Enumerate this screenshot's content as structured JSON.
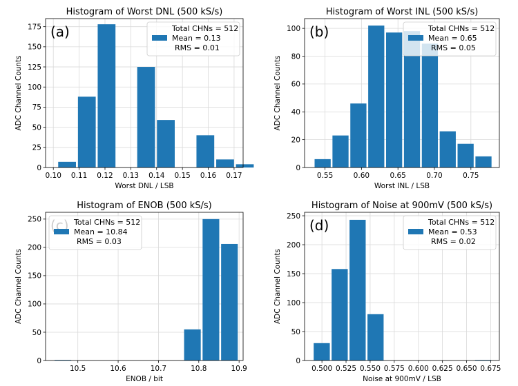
{
  "chart_data": [
    {
      "type": "bar",
      "title": "Histogram of Worst DNL (500 kS/s)",
      "panel_label": "(a)",
      "xlabel": "Worst DNL / LSB",
      "ylabel": "ADC Channel Counts",
      "xlim": [
        0.097,
        0.1735
      ],
      "ylim": [
        0,
        185
      ],
      "xticks": [
        0.1,
        0.11,
        0.12,
        0.13,
        0.14,
        0.15,
        0.16,
        0.17
      ],
      "xtick_labels": [
        "0.10",
        "0.11",
        "0.12",
        "0.13",
        "0.14",
        "0.15",
        "0.16",
        "0.17"
      ],
      "yticks": [
        0,
        25,
        50,
        75,
        100,
        125,
        150,
        175
      ],
      "ytick_labels": [
        "0",
        "25",
        "50",
        "75",
        "100",
        "125",
        "150",
        "175"
      ],
      "bin_start": 0.1015,
      "bin_width": 0.00765,
      "bar_fraction": 0.9,
      "values": [
        7,
        88,
        178,
        0,
        125,
        59,
        0,
        40,
        10,
        4
      ],
      "color": "#1f77b4",
      "legend": {
        "position": "top-right",
        "series_name": "Total CHNs = 512",
        "lines": [
          "Mean = 0.13",
          "RMS = 0.01"
        ]
      }
    },
    {
      "type": "bar",
      "title": "Histogram of Worst INL (500 kS/s)",
      "panel_label": "(b)",
      "xlabel": "Worst INL / LSB",
      "ylabel": "ADC Channel Counts",
      "xlim": [
        0.522,
        0.789
      ],
      "ylim": [
        0,
        107
      ],
      "xticks": [
        0.55,
        0.6,
        0.65,
        0.7,
        0.75
      ],
      "xtick_labels": [
        "0.55",
        "0.60",
        "0.65",
        "0.70",
        "0.75"
      ],
      "yticks": [
        0,
        20,
        40,
        60,
        80,
        100
      ],
      "ytick_labels": [
        "0",
        "20",
        "40",
        "60",
        "80",
        "100"
      ],
      "bin_start": 0.5345,
      "bin_width": 0.0245,
      "bar_fraction": 0.9,
      "values": [
        6,
        23,
        46,
        102,
        97,
        98,
        89,
        26,
        17,
        8
      ],
      "color": "#1f77b4",
      "legend": {
        "position": "top-right",
        "series_name": "Total CHNs = 512",
        "lines": [
          "Mean = 0.65",
          "RMS = 0.05"
        ]
      }
    },
    {
      "type": "bar",
      "title": "Histogram of ENOB (500 kS/s)",
      "panel_label": "(c)",
      "xlabel": "ENOB / bit",
      "ylabel": "ADC Channel Counts",
      "xlim": [
        10.42,
        10.91
      ],
      "ylim": [
        0,
        262
      ],
      "xticks": [
        10.5,
        10.6,
        10.7,
        10.8,
        10.9
      ],
      "xtick_labels": [
        "10.5",
        "10.6",
        "10.7",
        "10.8",
        "10.9"
      ],
      "yticks": [
        0,
        50,
        100,
        150,
        200,
        250
      ],
      "ytick_labels": [
        "0",
        "50",
        "100",
        "150",
        "200",
        "250"
      ],
      "bin_start": 10.44,
      "bin_width": 0.0459,
      "bar_fraction": 0.9,
      "values": [
        1,
        0,
        0,
        0,
        0,
        0,
        0,
        55,
        250,
        206
      ],
      "color": "#1f77b4",
      "legend": {
        "position": "top-left",
        "series_name": "Total CHNs = 512",
        "lines": [
          "Mean = 10.84",
          "RMS = 0.03"
        ]
      }
    },
    {
      "type": "bar",
      "title": "Histogram of Noise at 900mV (500 kS/s)",
      "panel_label": "(d)",
      "xlabel": "Noise at 900mV / LSB",
      "ylabel": "ADC Channel Counts",
      "xlim": [
        0.482,
        0.684
      ],
      "ylim": [
        0,
        256
      ],
      "xticks": [
        0.5,
        0.525,
        0.55,
        0.575,
        0.6,
        0.625,
        0.65,
        0.675
      ],
      "xtick_labels": [
        "0.500",
        "0.525",
        "0.550",
        "0.575",
        "0.600",
        "0.625",
        "0.650",
        "0.675"
      ],
      "yticks": [
        0,
        50,
        100,
        150,
        200,
        250
      ],
      "ytick_labels": [
        "0",
        "50",
        "100",
        "150",
        "200",
        "250"
      ],
      "bin_start": 0.4905,
      "bin_width": 0.0186,
      "bar_fraction": 0.9,
      "values": [
        30,
        158,
        243,
        80,
        0,
        0,
        0,
        0,
        0,
        1
      ],
      "color": "#1f77b4",
      "legend": {
        "position": "top-right",
        "series_name": "Total CHNs = 512",
        "lines": [
          "Mean = 0.53",
          "RMS = 0.02"
        ]
      }
    }
  ]
}
